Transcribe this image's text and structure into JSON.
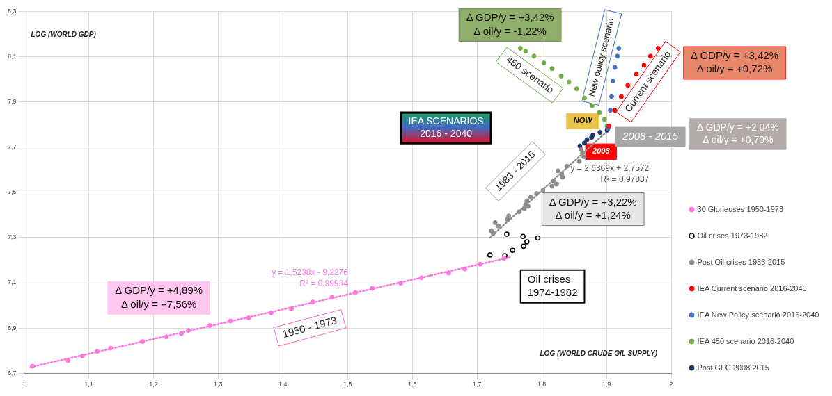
{
  "chart_data": {
    "type": "scatter",
    "xlabel": "LOG (WORLD CRUDE OIL SUPPLY)",
    "ylabel": "LOG (WORLD GDP)",
    "xlim": [
      1,
      2
    ],
    "xticks": [
      1,
      {
        "value": 1.1,
        "label": "1,1"
      },
      {
        "value": 1.2,
        "label": "1,2"
      },
      {
        "value": 1.3,
        "label": "1,3"
      },
      {
        "value": 1.4,
        "label": "1,4"
      },
      {
        "value": 1.5,
        "label": "1,5"
      },
      {
        "value": 1.6,
        "label": "1,6"
      },
      {
        "value": 1.7,
        "label": "1,7"
      },
      {
        "value": 1.8,
        "label": "1,8"
      },
      {
        "value": 1.9,
        "label": "1,9"
      },
      2
    ],
    "ylim": [
      6.7,
      8.3
    ],
    "yticks": [
      {
        "value": 6.7,
        "label": "6,7"
      },
      {
        "value": 6.9,
        "label": "6,9"
      },
      {
        "value": 7.1,
        "label": "7,1"
      },
      {
        "value": 7.3,
        "label": "7,3"
      },
      {
        "value": 7.5,
        "label": "7,5"
      },
      {
        "value": 7.7,
        "label": "7,7"
      },
      {
        "value": 7.9,
        "label": "7,9"
      },
      {
        "value": 8.1,
        "label": "8,1"
      },
      {
        "value": 8.3,
        "label": "8,3"
      }
    ],
    "grid": true,
    "legend": "right",
    "marker": "circle",
    "series": [
      {
        "name": "30 Glorieuses 1950-1973",
        "color": "#ff77dd",
        "x": [
          1.013,
          1.068,
          1.09,
          1.113,
          1.134,
          1.183,
          1.22,
          1.243,
          1.254,
          1.287,
          1.319,
          1.347,
          1.382,
          1.413,
          1.446,
          1.476,
          1.512,
          1.538,
          1.582,
          1.614,
          1.656,
          1.681,
          1.705,
          1.742
        ],
        "values": [
          6.731,
          6.756,
          6.776,
          6.797,
          6.811,
          6.84,
          6.861,
          6.875,
          6.889,
          6.911,
          6.931,
          6.945,
          6.967,
          6.985,
          7.015,
          7.036,
          7.057,
          7.075,
          7.098,
          7.122,
          7.143,
          7.161,
          7.182,
          7.209
        ]
      },
      {
        "name": "Oil crises 1973-1982",
        "color": "#000000",
        "x": [
          1.72,
          1.743,
          1.755,
          1.746,
          1.771,
          1.777,
          1.772,
          1.794
        ],
        "values": [
          7.223,
          7.22,
          7.244,
          7.315,
          7.305,
          7.281,
          7.262,
          7.298
        ]
      },
      {
        "name": "Post Oil crises 1983-2015",
        "color": "#8c8c8c",
        "x": [
          1.722,
          1.725,
          1.728,
          1.733,
          1.747,
          1.749,
          1.765,
          1.773,
          1.775,
          1.777,
          1.779,
          1.783,
          1.792,
          1.802,
          1.816,
          1.818,
          1.823,
          1.825,
          1.831,
          1.832,
          1.839,
          1.858,
          1.865,
          1.863,
          1.861
        ],
        "values": [
          7.33,
          7.318,
          7.366,
          7.351,
          7.38,
          7.396,
          7.414,
          7.428,
          7.446,
          7.462,
          7.438,
          7.478,
          7.495,
          7.51,
          7.527,
          7.55,
          7.536,
          7.595,
          7.58,
          7.567,
          7.615,
          7.637,
          7.657,
          7.675,
          7.689
        ]
      },
      {
        "name": "IEA Current scenario 2016-2040",
        "color": "#ff0000",
        "x": [
          1.904,
          1.913,
          1.923,
          1.933,
          1.946,
          1.958,
          1.968,
          1.98
        ],
        "values": [
          7.793,
          7.863,
          7.923,
          7.973,
          8.022,
          8.062,
          8.102,
          8.137
        ]
      },
      {
        "name": "IEA New Policy scenario 2016-2040",
        "color": "#4472c4",
        "x": [
          1.902,
          1.906,
          1.908,
          1.91,
          1.913,
          1.917,
          1.919
        ],
        "values": [
          7.783,
          7.863,
          7.923,
          7.992,
          8.052,
          8.102,
          8.137
        ]
      },
      {
        "name": "IEA 450 scenario 2016-2040",
        "color": "#70ad47",
        "x": [
          1.901,
          1.897,
          1.889,
          1.878,
          1.866,
          1.854,
          1.842,
          1.83,
          1.816,
          1.803,
          1.788,
          1.775,
          1.767
        ],
        "values": [
          7.793,
          7.823,
          7.853,
          7.883,
          7.917,
          7.958,
          7.988,
          8.014,
          8.047,
          8.072,
          8.102,
          8.124,
          8.137
        ]
      },
      {
        "name": "Post GFC 2008 2015",
        "color": "#1f3864",
        "x": [
          1.859,
          1.866,
          1.87,
          1.877,
          1.879,
          1.89,
          1.901
        ],
        "values": [
          7.705,
          7.718,
          7.733,
          7.743,
          7.753,
          7.765,
          7.775
        ]
      },
      {
        "type": "line",
        "line_style": "dotted",
        "marker": "none",
        "color": "#ff77dd",
        "x": [
          1.01,
          1.75
        ],
        "values": [
          6.727,
          7.212
        ]
      },
      {
        "type": "line",
        "line_style": "dotted",
        "marker": "none",
        "color": "#8c8c8c",
        "x": [
          1.72,
          1.905
        ],
        "values": [
          7.3,
          7.78
        ]
      }
    ],
    "annotations": [
      "Δ GDP/y = +3,42%\nΔ oil/y = -1,22%",
      "New policy scenario",
      "450 scenario",
      "Current scenario",
      "Δ GDP/y = +3,42%\nΔ oil/y = +0,72%",
      "IEA SCENARIOS\n2016 - 2040",
      "NOW",
      "2008",
      "2008 - 2015",
      "Δ GDP/y = +2,04%\nΔ oil/y = +0,70%",
      "y = 2,6369x + 2,7572\nR² = 0,97887",
      "1983 - 2015",
      "Δ GDP/y = +3,22%\nΔ oil/y = +1,24%",
      "y = 1,5238x - 9,2276\nR² = 0,99934",
      "Δ GDP/y = +4,89%\nΔ oil/y = +7,56%",
      "1950 - 1973",
      "Oil crises\n1974-1982"
    ]
  }
}
